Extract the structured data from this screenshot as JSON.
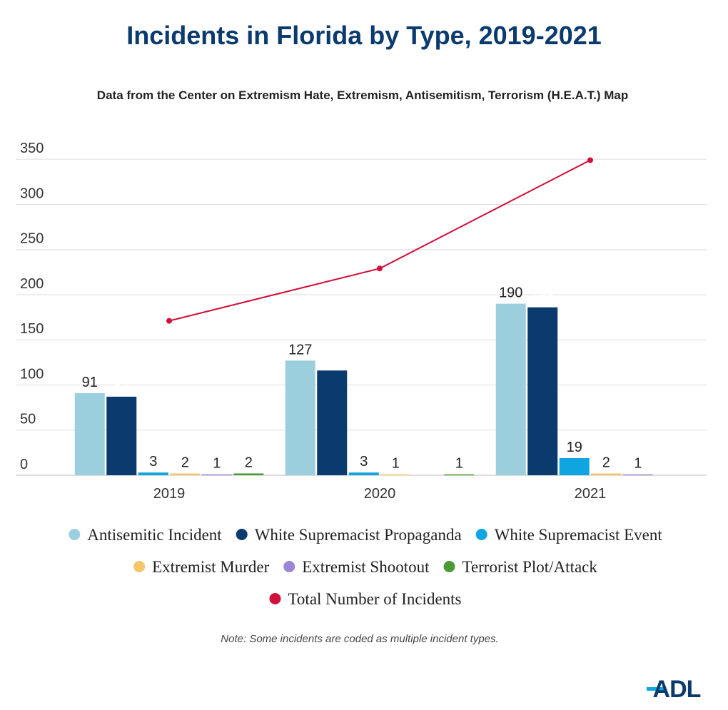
{
  "chart_data": {
    "type": "bar",
    "title": "Incidents in Florida by Type, 2019-2021",
    "subtitle": "Data from the Center on Extremism Hate, Extremism, Antisemitism, Terrorism (H.E.A.T.) Map",
    "categories": [
      "2019",
      "2020",
      "2021"
    ],
    "series": [
      {
        "name": "Antisemitic Incident",
        "color": "#9ccfdd",
        "values": [
          91,
          127,
          190
        ]
      },
      {
        "name": "White Supremacist Propaganda",
        "color": "#0b3a6e",
        "values": [
          87,
          116,
          186
        ]
      },
      {
        "name": "White Supremacist Event",
        "color": "#0ea5e0",
        "values": [
          3,
          3,
          19
        ]
      },
      {
        "name": "Extremist Murder",
        "color": "#f5c76a",
        "values": [
          2,
          1,
          2
        ]
      },
      {
        "name": "Extremist Shootout",
        "color": "#9b85d4",
        "values": [
          1,
          null,
          1
        ]
      },
      {
        "name": "Terrorist Plot/Attack",
        "color": "#4a9b35",
        "values": [
          2,
          1,
          null
        ]
      },
      {
        "name": "Total Number of Incidents",
        "color": "#d0103a",
        "type": "line",
        "values": [
          171,
          229,
          349
        ]
      }
    ],
    "ylim": [
      0,
      362
    ],
    "yticks": [
      0,
      50,
      100,
      150,
      200,
      250,
      300,
      350
    ],
    "grid": true,
    "note": "Note: Some incidents are coded as multiple incident types.",
    "logo": "ADL"
  }
}
